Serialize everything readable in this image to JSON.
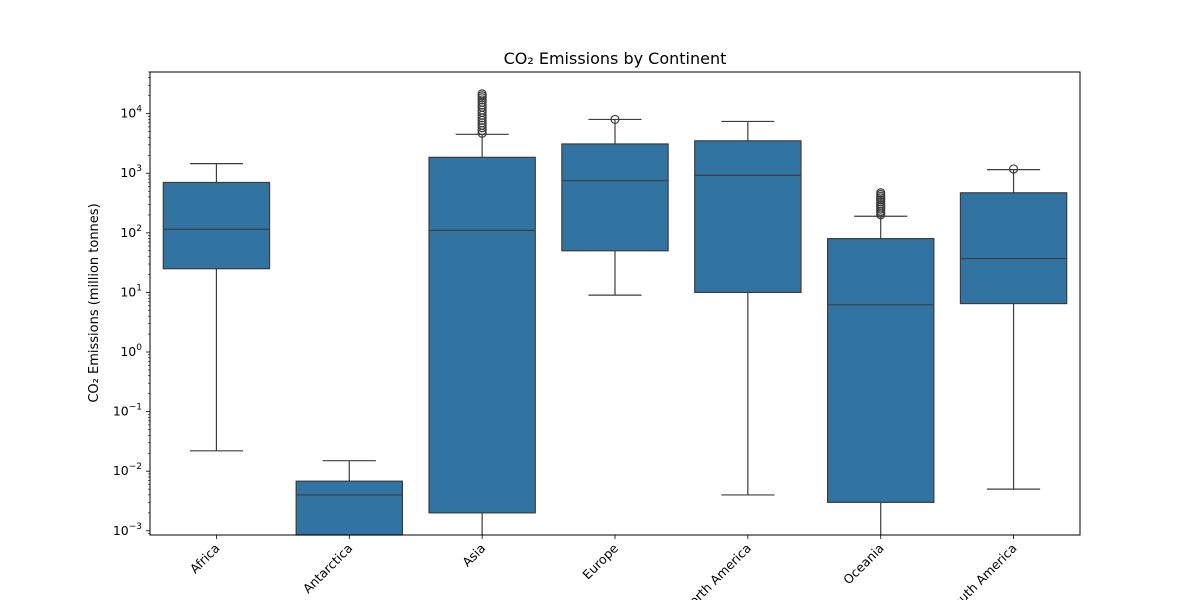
{
  "chart_data": {
    "type": "box",
    "title": "CO₂ Emissions by Continent",
    "xlabel": "",
    "ylabel": "CO₂ Emissions (million tonnes)",
    "yscale": "log",
    "ylim": [
      0.00085,
      50000
    ],
    "y_ticks": [
      {
        "value": 0.001,
        "exp": "−3"
      },
      {
        "value": 0.01,
        "exp": "−2"
      },
      {
        "value": 0.1,
        "exp": "−1"
      },
      {
        "value": 1,
        "exp": "0"
      },
      {
        "value": 10,
        "exp": "1"
      },
      {
        "value": 100,
        "exp": "2"
      },
      {
        "value": 1000,
        "exp": "3"
      },
      {
        "value": 10000,
        "exp": "4"
      }
    ],
    "categories": [
      "Africa",
      "Antarctica",
      "Asia",
      "Europe",
      "North America",
      "Oceania",
      "South America"
    ],
    "boxes": [
      {
        "name": "Africa",
        "whisker_low": 0.022,
        "q1": 25,
        "median": 115,
        "q3": 700,
        "whisker_high": 1450,
        "outliers": []
      },
      {
        "name": "Antarctica",
        "whisker_low": 0.00085,
        "q1": 0.00085,
        "median": 0.004,
        "q3": 0.0068,
        "whisker_high": 0.015,
        "outliers": []
      },
      {
        "name": "Asia",
        "whisker_low": 0.00085,
        "q1": 0.002,
        "median": 110,
        "q3": 1850,
        "whisker_high": 4500,
        "outliers": [
          4700,
          5200,
          5800,
          6400,
          7000,
          7700,
          8500,
          9400,
          10500,
          11500,
          12800,
          14000,
          15500,
          17000,
          18500,
          20000,
          21500
        ]
      },
      {
        "name": "Europe",
        "whisker_low": 9,
        "q1": 50,
        "median": 750,
        "q3": 3100,
        "whisker_high": 8000,
        "outliers": [
          8000
        ]
      },
      {
        "name": "North America",
        "whisker_low": 0.004,
        "q1": 10,
        "median": 920,
        "q3": 3500,
        "whisker_high": 7400,
        "outliers": []
      },
      {
        "name": "Oceania",
        "whisker_low": 0.00085,
        "q1": 0.003,
        "median": 6.2,
        "q3": 80,
        "whisker_high": 190,
        "outliers": [
          200,
          215,
          230,
          250,
          270,
          290,
          310,
          335,
          360,
          385,
          410,
          440,
          470
        ]
      },
      {
        "name": "South America",
        "whisker_low": 0.005,
        "q1": 6.5,
        "median": 37,
        "q3": 470,
        "whisker_high": 1150,
        "outliers": [
          1180
        ]
      }
    ],
    "colors": {
      "box_fill": "#3274a1",
      "line": "#3d3d3d",
      "axis": "#000000"
    }
  }
}
